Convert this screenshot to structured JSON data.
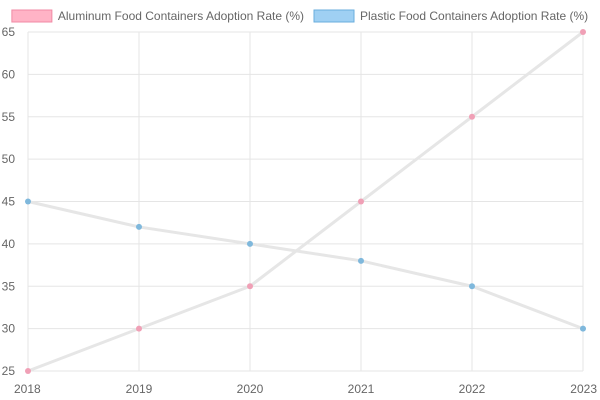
{
  "chart_data": {
    "type": "line",
    "title": "",
    "xlabel": "",
    "ylabel": "",
    "categories": [
      "2018",
      "2019",
      "2020",
      "2021",
      "2022",
      "2023"
    ],
    "ylim": [
      25,
      65
    ],
    "yticks": [
      25,
      30,
      35,
      40,
      45,
      50,
      55,
      60,
      65
    ],
    "grid": true,
    "legend": "top-center",
    "series": [
      {
        "name": "Aluminum Food Containers Adoption Rate (%)",
        "values": [
          25,
          30,
          35,
          45,
          55,
          65
        ],
        "color": "#f0a0b6",
        "legend_fill": "#ffb3c6",
        "legend_stroke": "#f08aa4"
      },
      {
        "name": "Plastic Food Containers Adoption Rate (%)",
        "values": [
          45,
          42,
          40,
          38,
          35,
          30
        ],
        "color": "#7fb8dc",
        "legend_fill": "#9fd0f3",
        "legend_stroke": "#6aaedc"
      }
    ]
  }
}
